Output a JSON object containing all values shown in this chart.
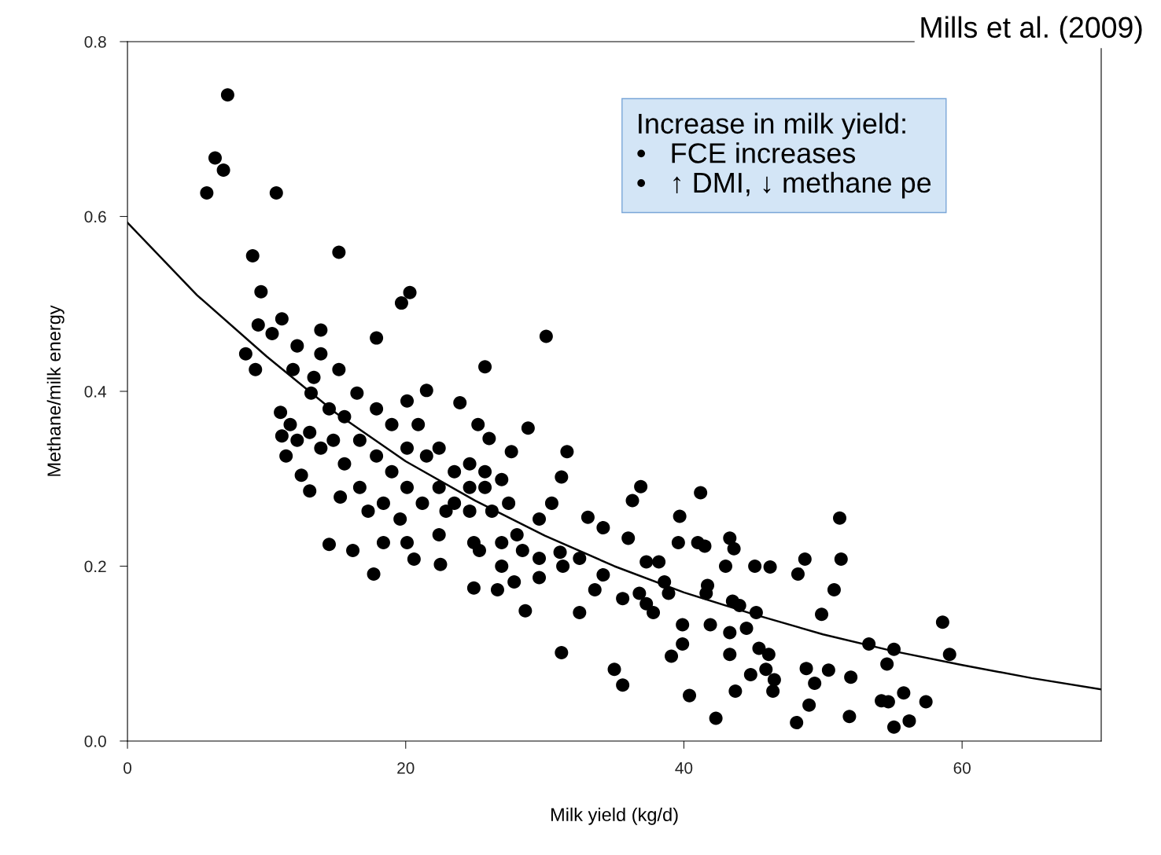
{
  "chart_data": {
    "type": "scatter",
    "xlabel": "Milk yield (kg/d)",
    "ylabel": "Methane/milk energy",
    "xlim": [
      0,
      70
    ],
    "ylim": [
      0,
      0.8
    ],
    "xticks": [
      0,
      20,
      40,
      60
    ],
    "yticks": [
      {
        "value": 0,
        "label": "0.0"
      },
      {
        "value": 0.2,
        "label": "0.2"
      },
      {
        "value": 0.4,
        "label": "0.4"
      },
      {
        "value": 0.6,
        "label": "0.6"
      },
      {
        "value": 0.8,
        "label": "0.8"
      }
    ],
    "annotations": [
      "Mills et al. (2009)",
      "Increase in milk yield:\n•   FCE increases\n•   ↑ DMI, ↓ methane pe"
    ],
    "series": [
      {
        "color": "#000000",
        "marker": "circle",
        "x": [
          7.2,
          6.3,
          6.9,
          5.7,
          10.7,
          9.0,
          15.2,
          9.6,
          20.3,
          19.7,
          30.1,
          17.9,
          9.4,
          10.4,
          8.5,
          9.2,
          25.7,
          11.1,
          13.9,
          21.5,
          23.9,
          28.8,
          25.2,
          26.0,
          27.6,
          31.6,
          31.2,
          11.0,
          11.4,
          12.5,
          13.1,
          15.3,
          14.5,
          16.2,
          17.7,
          20.6,
          22.5,
          24.9,
          26.6,
          27.8,
          28.6,
          31.2,
          32.5,
          33.1,
          36.3,
          36.9,
          41.2,
          39.7,
          39.6,
          41.0,
          41.5,
          43.3,
          43.6,
          43.0,
          45.1,
          46.2,
          48.2,
          48.7,
          51.2,
          51.3,
          50.8,
          49.9,
          58.6,
          59.1,
          53.3,
          55.1,
          54.6,
          52.0,
          50.4,
          48.8,
          49.4,
          49.0,
          48.1,
          51.9,
          54.2,
          54.7,
          55.8,
          57.4,
          55.1,
          56.2,
          42.3,
          40.4,
          43.7,
          44.8,
          45.9,
          46.5,
          46.4,
          46.1,
          45.4,
          43.3,
          41.9,
          39.9,
          39.1,
          39.9,
          43.3,
          44.5,
          45.2,
          43.5,
          44.0,
          41.7,
          41.6,
          38.9,
          37.8,
          36.8,
          35.6,
          35.0,
          35.6,
          37.3,
          38.6,
          38.2,
          37.3,
          34.2,
          33.6,
          34.2,
          36.0,
          32.5,
          31.1,
          29.6,
          30.5,
          29.6,
          28.0,
          26.9,
          25.3,
          24.9,
          22.4,
          20.1,
          18.4,
          17.3,
          15.6,
          14.8,
          14.5,
          16.5,
          17.9,
          19.0,
          20.1,
          20.9,
          20.1,
          21.5,
          22.4,
          23.5,
          24.6,
          25.7,
          26.9,
          24.6,
          22.4,
          20.1,
          19.0,
          17.9,
          16.7,
          16.7,
          18.4,
          19.6,
          21.2,
          22.9,
          24.6,
          26.2,
          27.4,
          25.7,
          23.5,
          13.9,
          13.4,
          12.2,
          11.9,
          13.2,
          11.7,
          13.1,
          13.9,
          12.2,
          11.1,
          15.2,
          15.6,
          29.6,
          31.3,
          28.4,
          26.9
        ],
        "values": [
          0.739,
          0.667,
          0.653,
          0.627,
          0.627,
          0.555,
          0.559,
          0.514,
          0.513,
          0.501,
          0.463,
          0.461,
          0.476,
          0.466,
          0.443,
          0.425,
          0.428,
          0.483,
          0.47,
          0.401,
          0.387,
          0.358,
          0.362,
          0.346,
          0.331,
          0.331,
          0.302,
          0.376,
          0.326,
          0.304,
          0.286,
          0.279,
          0.225,
          0.218,
          0.191,
          0.208,
          0.202,
          0.175,
          0.173,
          0.182,
          0.149,
          0.101,
          0.147,
          0.256,
          0.275,
          0.291,
          0.284,
          0.257,
          0.227,
          0.227,
          0.223,
          0.232,
          0.22,
          0.2,
          0.2,
          0.199,
          0.191,
          0.208,
          0.255,
          0.208,
          0.173,
          0.145,
          0.136,
          0.099,
          0.111,
          0.105,
          0.088,
          0.073,
          0.081,
          0.083,
          0.066,
          0.041,
          0.021,
          0.028,
          0.046,
          0.045,
          0.055,
          0.045,
          0.016,
          0.023,
          0.026,
          0.052,
          0.057,
          0.076,
          0.082,
          0.07,
          0.057,
          0.099,
          0.106,
          0.099,
          0.133,
          0.111,
          0.097,
          0.133,
          0.124,
          0.129,
          0.147,
          0.16,
          0.155,
          0.178,
          0.169,
          0.169,
          0.147,
          0.169,
          0.163,
          0.082,
          0.064,
          0.157,
          0.182,
          0.205,
          0.205,
          0.19,
          0.173,
          0.244,
          0.232,
          0.209,
          0.216,
          0.209,
          0.272,
          0.254,
          0.236,
          0.227,
          0.218,
          0.227,
          0.236,
          0.227,
          0.227,
          0.263,
          0.317,
          0.344,
          0.38,
          0.398,
          0.38,
          0.362,
          0.389,
          0.362,
          0.335,
          0.326,
          0.335,
          0.308,
          0.317,
          0.308,
          0.299,
          0.29,
          0.29,
          0.29,
          0.308,
          0.326,
          0.344,
          0.29,
          0.272,
          0.254,
          0.272,
          0.263,
          0.263,
          0.263,
          0.272,
          0.29,
          0.272,
          0.443,
          0.416,
          0.452,
          0.425,
          0.398,
          0.362,
          0.353,
          0.335,
          0.344,
          0.349,
          0.425,
          0.371,
          0.187,
          0.2,
          0.218,
          0.2
        ]
      },
      {
        "type": "line",
        "color": "#000000",
        "x": [
          0,
          5,
          10,
          15,
          20,
          25,
          30,
          35,
          40,
          45,
          50,
          55,
          60,
          65,
          70
        ],
        "values": [
          0.593,
          0.51,
          0.44,
          0.375,
          0.32,
          0.275,
          0.235,
          0.2,
          0.17,
          0.145,
          0.122,
          0.103,
          0.087,
          0.072,
          0.059
        ]
      }
    ]
  }
}
